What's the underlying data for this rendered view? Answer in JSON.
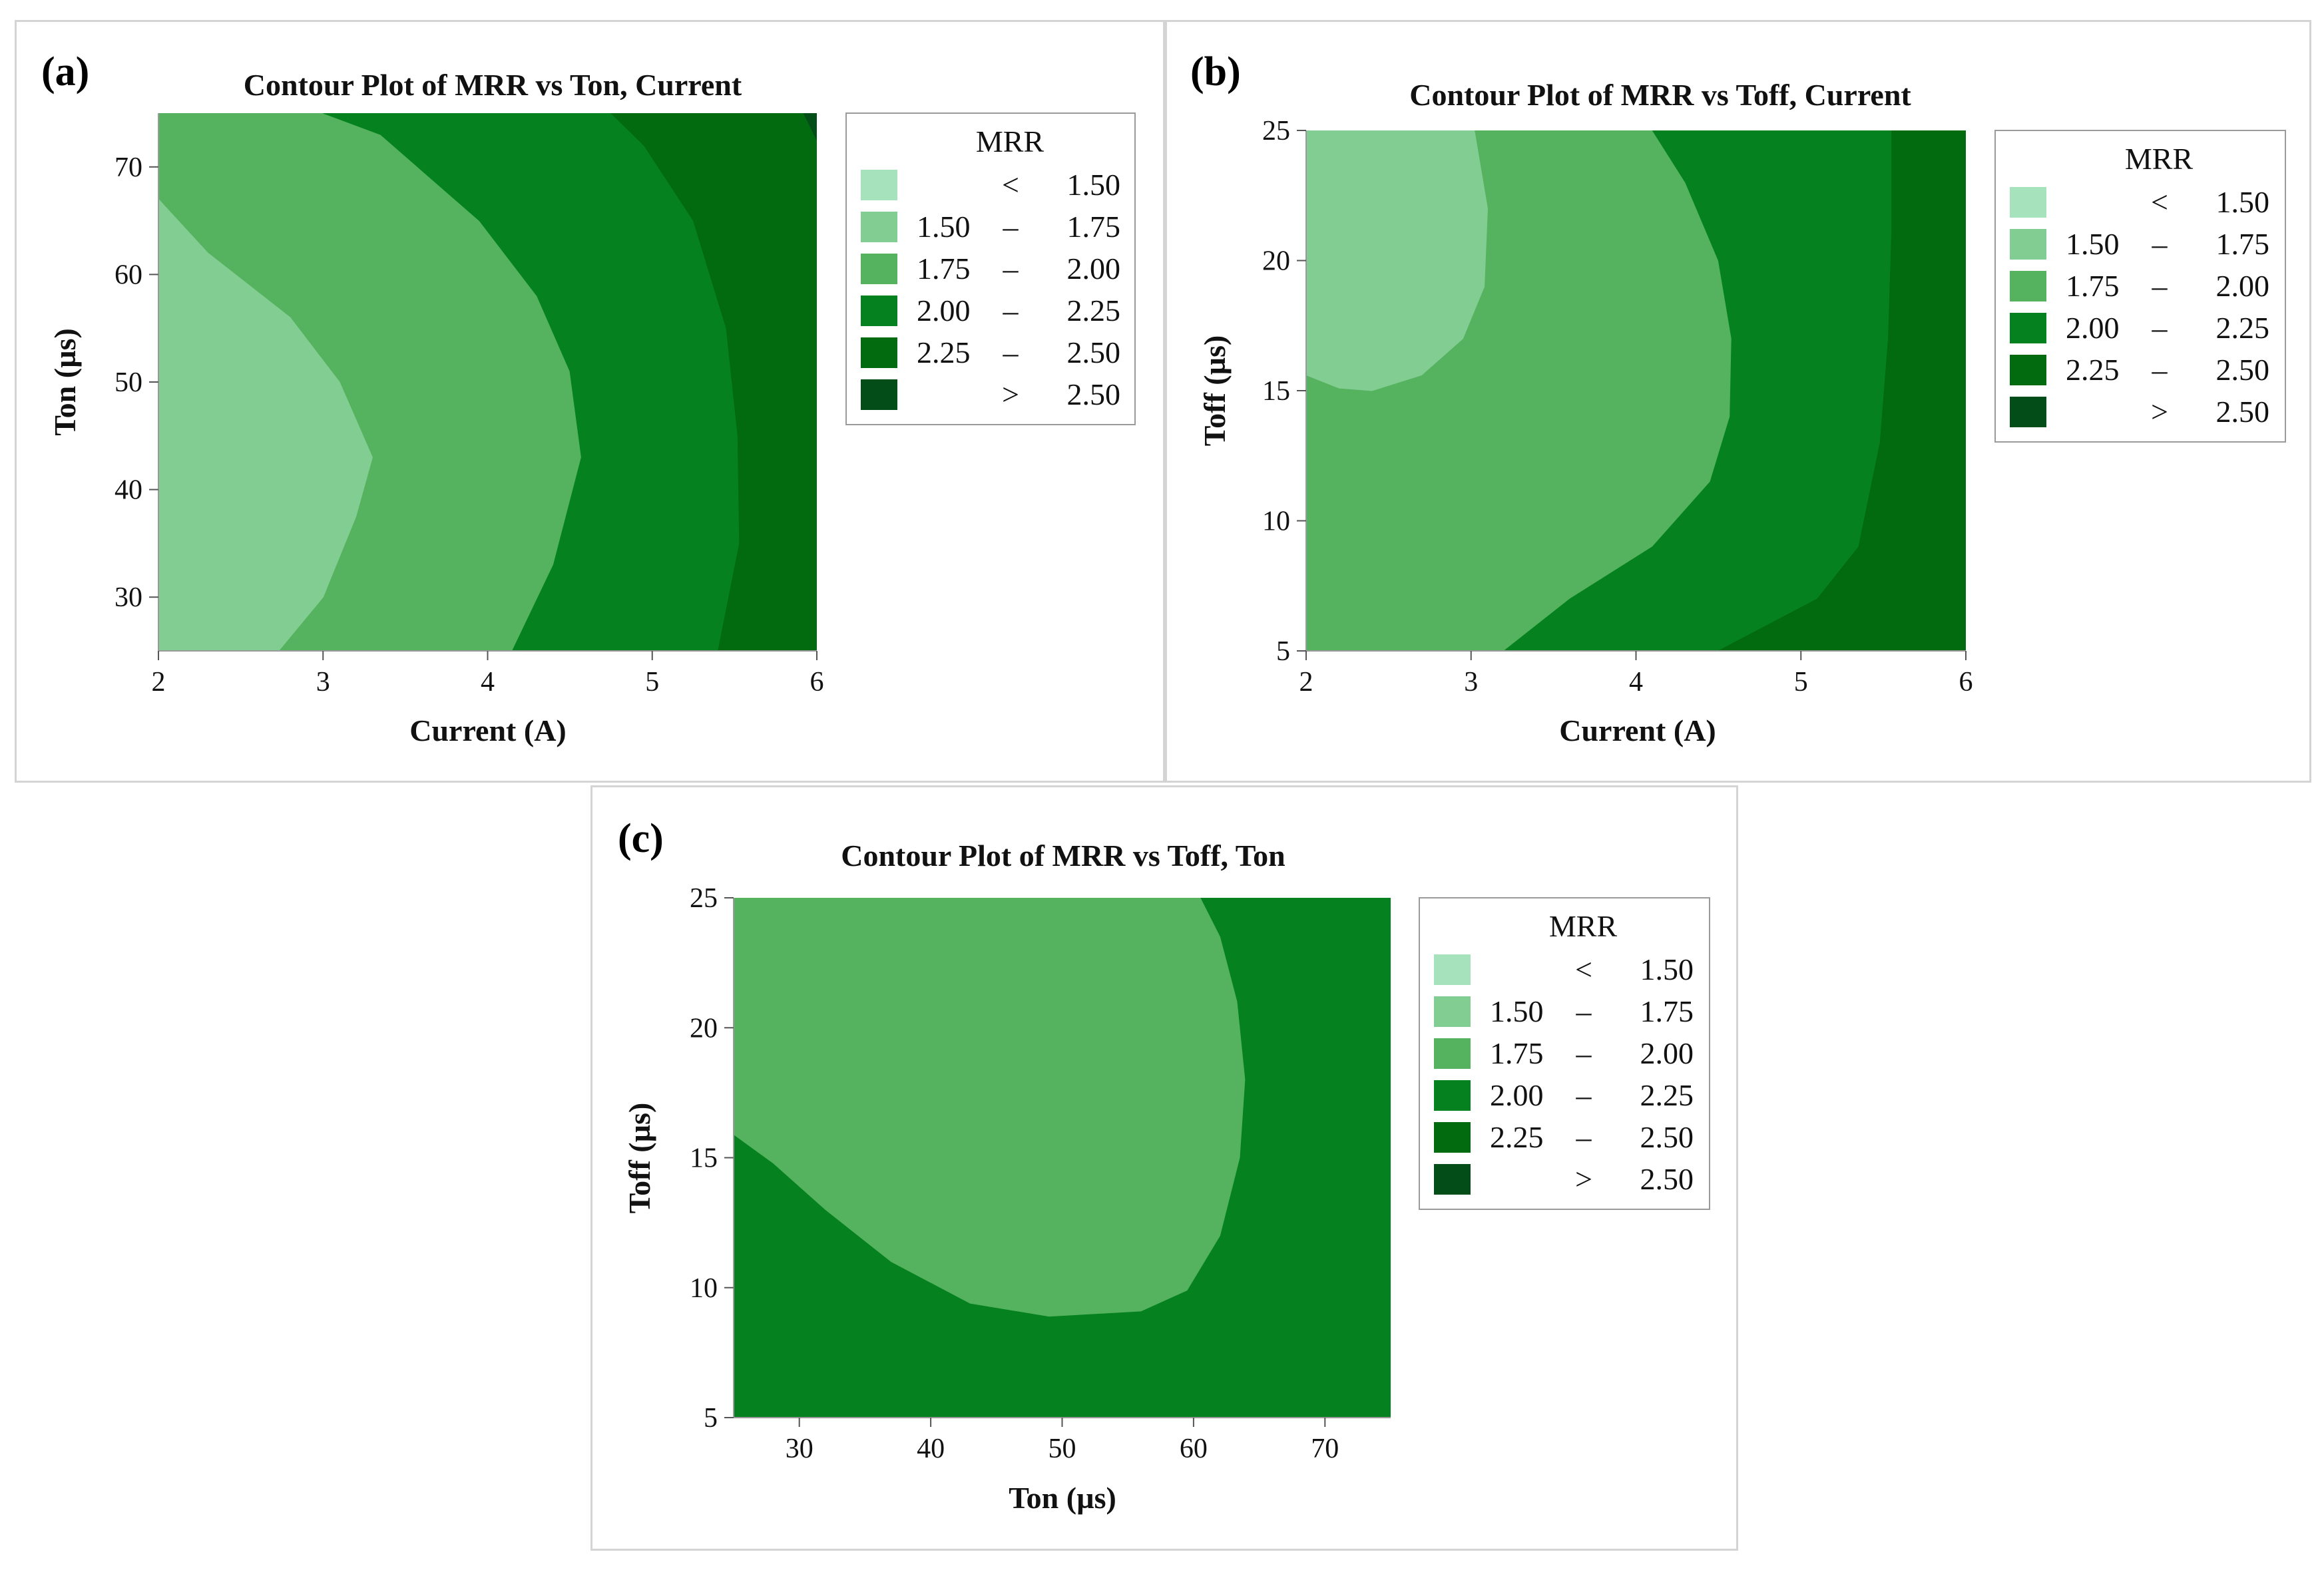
{
  "legend": {
    "title": "MRR",
    "entries": [
      {
        "label_left": "",
        "sep": "<",
        "label_right": "1.50",
        "color": "#a6e3bd"
      },
      {
        "label_left": "1.50",
        "sep": "–",
        "label_right": "1.75",
        "color": "#82cd92"
      },
      {
        "label_left": "1.75",
        "sep": "–",
        "label_right": "2.00",
        "color": "#55b25e"
      },
      {
        "label_left": "2.00",
        "sep": "–",
        "label_right": "2.25",
        "color": "#05821f"
      },
      {
        "label_left": "2.25",
        "sep": "–",
        "label_right": "2.50",
        "color": "#026a0f"
      },
      {
        "label_left": "",
        "sep": ">",
        "label_right": "2.50",
        "color": "#024d18"
      }
    ]
  },
  "chart_data": [
    {
      "type": "contour",
      "panel_label": "(a)",
      "title": "Contour Plot of MRR vs Ton, Current",
      "xlabel": "Current (A)",
      "ylabel": "Ton (µs)",
      "xlim": [
        2,
        6
      ],
      "ylim": [
        25,
        75
      ],
      "xticks": [
        "2",
        "3",
        "4",
        "5",
        "6"
      ],
      "yticks": [
        "30",
        "40",
        "50",
        "60",
        "70"
      ],
      "xtick_values": [
        2,
        3,
        4,
        5,
        6
      ],
      "ytick_values": [
        30,
        40,
        50,
        60,
        70
      ],
      "regions": [
        {
          "level": "1.75 – 2.00",
          "color": "#55b25e",
          "points": [
            [
              2,
              25
            ],
            [
              6,
              25
            ],
            [
              6,
              75
            ],
            [
              2,
              75
            ]
          ]
        },
        {
          "level": "1.50 – 1.75",
          "color": "#82cd92",
          "points": [
            [
              2,
              25
            ],
            [
              2.73,
              25
            ],
            [
              3.0,
              30
            ],
            [
              3.2,
              37.5
            ],
            [
              3.3,
              43
            ],
            [
              3.1,
              50
            ],
            [
              2.8,
              56
            ],
            [
              2.3,
              62
            ],
            [
              2,
              67
            ]
          ]
        },
        {
          "level": "2.00 – 2.25",
          "color": "#05821f",
          "points": [
            [
              4.15,
              25
            ],
            [
              4.4,
              33
            ],
            [
              4.57,
              43
            ],
            [
              4.5,
              51
            ],
            [
              4.3,
              58
            ],
            [
              3.95,
              65
            ],
            [
              3.35,
              73
            ],
            [
              3.0,
              75
            ],
            [
              6,
              75
            ],
            [
              6,
              25
            ]
          ]
        },
        {
          "level": "2.25 – 2.50",
          "color": "#026a0f",
          "points": [
            [
              5.4,
              25
            ],
            [
              5.53,
              35
            ],
            [
              5.52,
              45
            ],
            [
              5.45,
              55
            ],
            [
              5.25,
              65
            ],
            [
              4.95,
              72
            ],
            [
              4.75,
              75
            ],
            [
              6,
              75
            ],
            [
              6,
              25
            ]
          ]
        },
        {
          "level": "> 2.50",
          "color": "#024d18",
          "points": [
            [
              5.92,
              75
            ],
            [
              6,
              75
            ],
            [
              6,
              72.5
            ]
          ]
        }
      ]
    },
    {
      "type": "contour",
      "panel_label": "(b)",
      "title": "Contour Plot of MRR vs Toff, Current",
      "xlabel": "Current (A)",
      "ylabel": "Toff (µs)",
      "xlim": [
        2,
        6
      ],
      "ylim": [
        5,
        25
      ],
      "xticks": [
        "2",
        "3",
        "4",
        "5",
        "6"
      ],
      "yticks": [
        "5",
        "10",
        "15",
        "20",
        "25"
      ],
      "xtick_values": [
        2,
        3,
        4,
        5,
        6
      ],
      "ytick_values": [
        5,
        10,
        15,
        20,
        25
      ],
      "regions": [
        {
          "level": "1.75 – 2.00",
          "color": "#55b25e",
          "points": [
            [
              2,
              5
            ],
            [
              6,
              5
            ],
            [
              6,
              25
            ],
            [
              2,
              25
            ]
          ]
        },
        {
          "level": "1.50 – 1.75",
          "color": "#82cd92",
          "points": [
            [
              2,
              25
            ],
            [
              3.02,
              25
            ],
            [
              3.1,
              22
            ],
            [
              3.08,
              19
            ],
            [
              2.95,
              17
            ],
            [
              2.7,
              15.6
            ],
            [
              2.4,
              15.0
            ],
            [
              2.2,
              15.1
            ],
            [
              2,
              15.6
            ]
          ]
        },
        {
          "level": "2.00 – 2.25",
          "color": "#05821f",
          "points": [
            [
              3.2,
              5
            ],
            [
              3.6,
              7
            ],
            [
              4.1,
              9
            ],
            [
              4.45,
              11.5
            ],
            [
              4.57,
              14
            ],
            [
              4.58,
              17
            ],
            [
              4.5,
              20
            ],
            [
              4.3,
              23
            ],
            [
              4.1,
              25
            ],
            [
              6,
              25
            ],
            [
              6,
              5
            ]
          ]
        },
        {
          "level": "2.25 – 2.50",
          "color": "#026a0f",
          "points": [
            [
              4.5,
              5
            ],
            [
              5.1,
              7
            ],
            [
              5.35,
              9
            ],
            [
              5.48,
              13
            ],
            [
              5.53,
              17
            ],
            [
              5.55,
              21
            ],
            [
              5.55,
              25
            ],
            [
              6,
              25
            ],
            [
              6,
              5
            ]
          ]
        }
      ]
    },
    {
      "type": "contour",
      "panel_label": "(c)",
      "title": "Contour Plot of MRR vs Toff, Ton",
      "xlabel": "Ton (µs)",
      "ylabel": "Toff (µs)",
      "xlim": [
        25,
        75
      ],
      "ylim": [
        5,
        25
      ],
      "xticks": [
        "30",
        "40",
        "50",
        "60",
        "70"
      ],
      "yticks": [
        "5",
        "10",
        "15",
        "20",
        "25"
      ],
      "xtick_values": [
        30,
        40,
        50,
        60,
        70
      ],
      "ytick_values": [
        5,
        10,
        15,
        20,
        25
      ],
      "regions": [
        {
          "level": "2.00 – 2.25",
          "color": "#05821f",
          "points": [
            [
              25,
              5
            ],
            [
              75,
              5
            ],
            [
              75,
              25
            ],
            [
              25,
              25
            ]
          ]
        },
        {
          "level": "1.75 – 2.00",
          "color": "#55b25e",
          "points": [
            [
              25,
              25
            ],
            [
              60.5,
              25
            ],
            [
              62,
              23.5
            ],
            [
              63.3,
              21
            ],
            [
              63.9,
              18
            ],
            [
              63.5,
              15
            ],
            [
              62,
              12
            ],
            [
              59.5,
              9.9
            ],
            [
              56,
              9.1
            ],
            [
              49,
              8.9
            ],
            [
              43,
              9.4
            ],
            [
              37,
              11
            ],
            [
              32,
              13
            ],
            [
              28,
              14.8
            ],
            [
              25,
              15.9
            ]
          ]
        }
      ]
    }
  ]
}
